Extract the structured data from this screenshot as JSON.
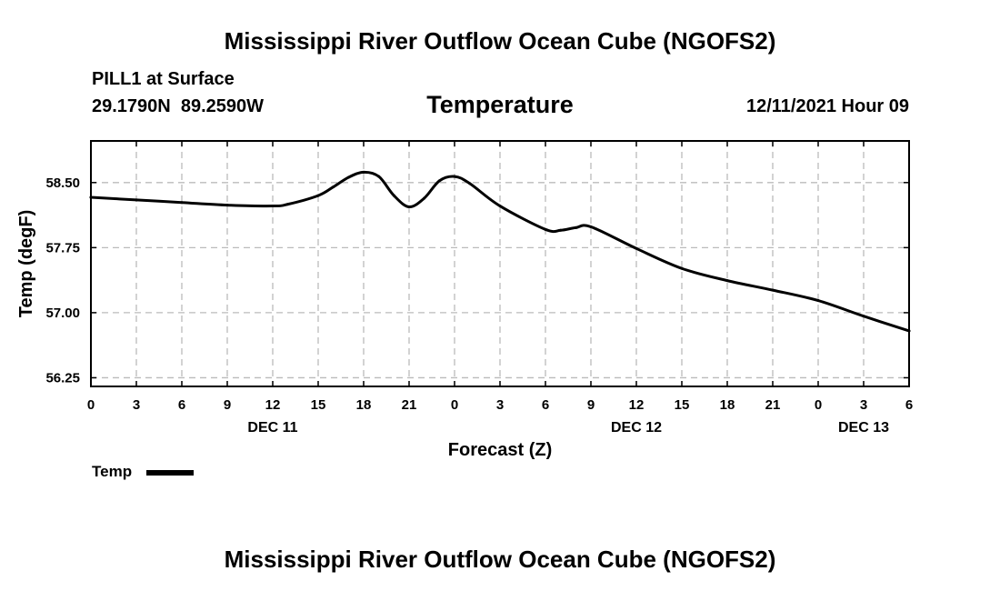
{
  "header": {
    "title": "Mississippi River Outflow Ocean Cube (NGOFS2)",
    "station_label": "PILL1 at Surface",
    "coordinates": "29.1790N  89.2590W",
    "variable": "Temperature",
    "datetime": "12/11/2021 Hour 09"
  },
  "footer": {
    "title": "Mississippi River Outflow Ocean Cube (NGOFS2)"
  },
  "legend": {
    "label": "Temp"
  },
  "colors": {
    "series": "#000000",
    "grid": "#bbbbbb"
  },
  "chart_data": {
    "type": "line",
    "title": "Temperature",
    "xlabel": "Forecast (Z)",
    "ylabel": "Temp (degF)",
    "xlim": [
      0,
      54
    ],
    "ylim": [
      56.15,
      58.98
    ],
    "grid": true,
    "x_ticks": [
      0,
      3,
      6,
      9,
      12,
      15,
      18,
      21,
      24,
      27,
      30,
      33,
      36,
      39,
      42,
      45,
      48,
      51,
      54
    ],
    "x_tick_labels": [
      "0",
      "3",
      "6",
      "9",
      "12",
      "15",
      "18",
      "21",
      "0",
      "3",
      "6",
      "9",
      "12",
      "15",
      "18",
      "21",
      "0",
      "3",
      "6"
    ],
    "day_labels": [
      {
        "label": "DEC 11",
        "x": 12
      },
      {
        "label": "DEC 12",
        "x": 36
      },
      {
        "label": "DEC 13",
        "x": 51
      }
    ],
    "y_ticks": [
      56.25,
      57.0,
      57.75,
      58.5
    ],
    "y_tick_labels": [
      "56.25",
      "57.00",
      "57.75",
      "58.50"
    ],
    "series": [
      {
        "name": "Temp",
        "x": [
          0,
          3,
          6,
          9,
          12,
          13,
          15,
          16,
          17,
          18,
          19,
          20,
          21,
          22,
          23,
          24,
          25,
          27,
          30,
          31,
          32,
          33,
          36,
          39,
          42,
          45,
          48,
          51,
          54
        ],
        "y": [
          58.33,
          58.3,
          58.27,
          58.24,
          58.23,
          58.25,
          58.35,
          58.45,
          58.56,
          58.62,
          58.57,
          58.35,
          58.22,
          58.32,
          58.52,
          58.57,
          58.49,
          58.23,
          57.96,
          57.95,
          57.98,
          57.99,
          57.74,
          57.51,
          57.37,
          57.26,
          57.14,
          56.96,
          56.79
        ]
      }
    ]
  }
}
